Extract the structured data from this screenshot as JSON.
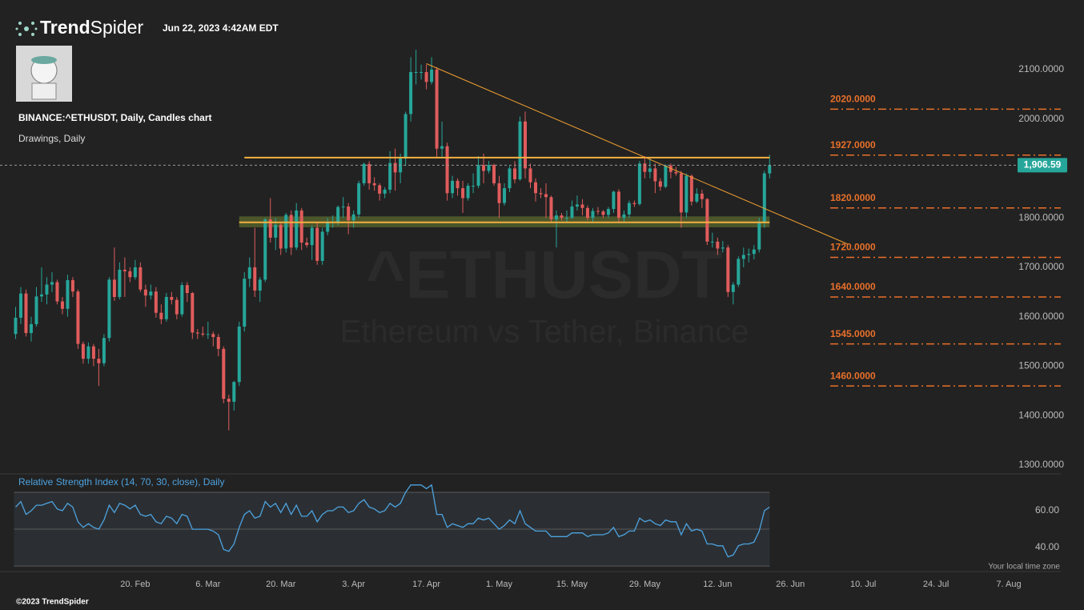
{
  "header": {
    "brand": {
      "bold": "Trend",
      "light": "Spider"
    },
    "timestamp": "Jun 22, 2023 4:42AM EDT"
  },
  "footer": {
    "copyright": "©2023 TrendSpider",
    "timezone_note": "Your local time zone"
  },
  "chart_data": {
    "type": "candlestick",
    "title": "BINANCE:^ETHUSDT, Daily, Candles chart",
    "subtitle": "Drawings, Daily",
    "watermark": "^ETHUSDT",
    "watermark_subtitle": "Ethereum vs Tether, Binance",
    "up_color": "#26a69a",
    "down_color": "#e05c5c",
    "xlim": [
      "2023-01-25",
      "2023-08-17"
    ],
    "xticks": [
      {
        "value": "2023-02-20",
        "label": "20. Feb"
      },
      {
        "value": "2023-03-06",
        "label": "6. Mar"
      },
      {
        "value": "2023-03-20",
        "label": "20. Mar"
      },
      {
        "value": "2023-04-03",
        "label": "3. Apr"
      },
      {
        "value": "2023-04-17",
        "label": "17. Apr"
      },
      {
        "value": "2023-05-01",
        "label": "1. May"
      },
      {
        "value": "2023-05-15",
        "label": "15. May"
      },
      {
        "value": "2023-05-29",
        "label": "29. May"
      },
      {
        "value": "2023-06-12",
        "label": "12. Jun"
      },
      {
        "value": "2023-06-26",
        "label": "26. Jun"
      },
      {
        "value": "2023-07-10",
        "label": "10. Jul"
      },
      {
        "value": "2023-07-24",
        "label": "24. Jul"
      },
      {
        "value": "2023-08-07",
        "label": "7. Aug"
      }
    ],
    "ylim": [
      1282,
      2176
    ],
    "yticks": [
      {
        "value": 2100,
        "label": "2100.0000"
      },
      {
        "value": 2000,
        "label": "2000.0000"
      },
      {
        "value": 1900,
        "label": "1900.0000"
      },
      {
        "value": 1800,
        "label": "1800.0000"
      },
      {
        "value": 1700,
        "label": "1700.0000"
      },
      {
        "value": 1600,
        "label": "1600.0000"
      },
      {
        "value": 1500,
        "label": "1500.0000"
      },
      {
        "value": 1400,
        "label": "1400.0000"
      },
      {
        "value": 1300,
        "label": "1300.0000"
      }
    ],
    "x": [
      "2023-01-28",
      "2023-01-29",
      "2023-01-30",
      "2023-01-31",
      "2023-02-01",
      "2023-02-02",
      "2023-02-03",
      "2023-02-04",
      "2023-02-05",
      "2023-02-06",
      "2023-02-07",
      "2023-02-08",
      "2023-02-09",
      "2023-02-10",
      "2023-02-11",
      "2023-02-12",
      "2023-02-13",
      "2023-02-14",
      "2023-02-15",
      "2023-02-16",
      "2023-02-17",
      "2023-02-18",
      "2023-02-19",
      "2023-02-20",
      "2023-02-21",
      "2023-02-22",
      "2023-02-23",
      "2023-02-24",
      "2023-02-25",
      "2023-02-26",
      "2023-02-27",
      "2023-02-28",
      "2023-03-01",
      "2023-03-02",
      "2023-03-03",
      "2023-03-04",
      "2023-03-05",
      "2023-03-06",
      "2023-03-07",
      "2023-03-08",
      "2023-03-09",
      "2023-03-10",
      "2023-03-11",
      "2023-03-12",
      "2023-03-13",
      "2023-03-14",
      "2023-03-15",
      "2023-03-16",
      "2023-03-17",
      "2023-03-18",
      "2023-03-19",
      "2023-03-20",
      "2023-03-21",
      "2023-03-22",
      "2023-03-23",
      "2023-03-24",
      "2023-03-25",
      "2023-03-26",
      "2023-03-27",
      "2023-03-28",
      "2023-03-29",
      "2023-03-30",
      "2023-03-31",
      "2023-04-01",
      "2023-04-02",
      "2023-04-03",
      "2023-04-04",
      "2023-04-05",
      "2023-04-06",
      "2023-04-07",
      "2023-04-08",
      "2023-04-09",
      "2023-04-10",
      "2023-04-11",
      "2023-04-12",
      "2023-04-13",
      "2023-04-14",
      "2023-04-15",
      "2023-04-16",
      "2023-04-17",
      "2023-04-18",
      "2023-04-19",
      "2023-04-20",
      "2023-04-21",
      "2023-04-22",
      "2023-04-23",
      "2023-04-24",
      "2023-04-25",
      "2023-04-26",
      "2023-04-27",
      "2023-04-28",
      "2023-04-29",
      "2023-04-30",
      "2023-05-01",
      "2023-05-02",
      "2023-05-03",
      "2023-05-04",
      "2023-05-05",
      "2023-05-06",
      "2023-05-07",
      "2023-05-08",
      "2023-05-09",
      "2023-05-10",
      "2023-05-11",
      "2023-05-12",
      "2023-05-13",
      "2023-05-14",
      "2023-05-15",
      "2023-05-16",
      "2023-05-17",
      "2023-05-18",
      "2023-05-19",
      "2023-05-20",
      "2023-05-21",
      "2023-05-22",
      "2023-05-23",
      "2023-05-24",
      "2023-05-25",
      "2023-05-26",
      "2023-05-27",
      "2023-05-28",
      "2023-05-29",
      "2023-05-30",
      "2023-05-31",
      "2023-06-01",
      "2023-06-02",
      "2023-06-03",
      "2023-06-04",
      "2023-06-05",
      "2023-06-06",
      "2023-06-07",
      "2023-06-08",
      "2023-06-09",
      "2023-06-10",
      "2023-06-11",
      "2023-06-12",
      "2023-06-13",
      "2023-06-14",
      "2023-06-15",
      "2023-06-16",
      "2023-06-17",
      "2023-06-18",
      "2023-06-19",
      "2023-06-20",
      "2023-06-21",
      "2023-06-22"
    ],
    "open": [
      1565,
      1598,
      1647,
      1567,
      1585,
      1641,
      1645,
      1665,
      1670,
      1631,
      1616,
      1674,
      1651,
      1545,
      1515,
      1540,
      1515,
      1506,
      1557,
      1675,
      1640,
      1695,
      1692,
      1680,
      1700,
      1655,
      1643,
      1651,
      1608,
      1595,
      1640,
      1634,
      1605,
      1664,
      1648,
      1568,
      1566,
      1564,
      1565,
      1559,
      1535,
      1434,
      1428,
      1468,
      1580,
      1677,
      1700,
      1653,
      1675,
      1797,
      1760,
      1786,
      1738,
      1806,
      1740,
      1815,
      1750,
      1745,
      1780,
      1713,
      1772,
      1792,
      1792,
      1822,
      1823,
      1795,
      1807,
      1870,
      1909,
      1870,
      1866,
      1849,
      1857,
      1911,
      1892,
      1920,
      2010,
      2095,
      2095,
      2095,
      2075,
      2100,
      1940,
      1945,
      1850,
      1875,
      1860,
      1840,
      1865,
      1865,
      1907,
      1895,
      1907,
      1870,
      1830,
      1860,
      1900,
      1878,
      1995,
      1900,
      1872,
      1850,
      1848,
      1842,
      1797,
      1805,
      1800,
      1800,
      1823,
      1827,
      1820,
      1800,
      1814,
      1813,
      1806,
      1818,
      1853,
      1800,
      1807,
      1830,
      1828,
      1910,
      1893,
      1900,
      1874,
      1863,
      1906,
      1893,
      1890,
      1811,
      1885,
      1833,
      1849,
      1838,
      1752,
      1752,
      1738,
      1740,
      1650,
      1665,
      1717,
      1725,
      1727,
      1736,
      1790,
      1890
    ],
    "high": [
      1620,
      1660,
      1655,
      1600,
      1660,
      1700,
      1680,
      1690,
      1675,
      1640,
      1685,
      1680,
      1655,
      1550,
      1548,
      1545,
      1535,
      1565,
      1680,
      1740,
      1710,
      1720,
      1700,
      1715,
      1710,
      1665,
      1665,
      1660,
      1625,
      1648,
      1650,
      1640,
      1670,
      1670,
      1650,
      1575,
      1580,
      1590,
      1570,
      1565,
      1540,
      1442,
      1470,
      1590,
      1690,
      1720,
      1780,
      1680,
      1800,
      1840,
      1800,
      1790,
      1810,
      1815,
      1830,
      1820,
      1760,
      1785,
      1790,
      1780,
      1800,
      1805,
      1825,
      1842,
      1830,
      1815,
      1875,
      1912,
      1915,
      1882,
      1870,
      1862,
      1935,
      1940,
      1930,
      2015,
      2125,
      2140,
      2110,
      2110,
      2125,
      2105,
      1995,
      1952,
      1885,
      1880,
      1875,
      1870,
      1890,
      1925,
      1930,
      1915,
      1910,
      1885,
      1870,
      1905,
      1915,
      2005,
      2015,
      1910,
      1880,
      1860,
      1870,
      1845,
      1815,
      1810,
      1815,
      1835,
      1845,
      1838,
      1825,
      1820,
      1822,
      1816,
      1822,
      1855,
      1858,
      1815,
      1835,
      1835,
      1915,
      1925,
      1920,
      1910,
      1880,
      1908,
      1910,
      1903,
      1895,
      1890,
      1888,
      1860,
      1857,
      1840,
      1770,
      1760,
      1753,
      1745,
      1670,
      1722,
      1740,
      1738,
      1745,
      1800,
      1895,
      1928
    ],
    "low": [
      1555,
      1585,
      1560,
      1550,
      1580,
      1630,
      1625,
      1650,
      1625,
      1605,
      1600,
      1640,
      1535,
      1505,
      1505,
      1500,
      1460,
      1500,
      1550,
      1632,
      1635,
      1640,
      1670,
      1675,
      1650,
      1620,
      1635,
      1598,
      1585,
      1590,
      1625,
      1595,
      1600,
      1630,
      1555,
      1555,
      1560,
      1555,
      1540,
      1520,
      1425,
      1370,
      1410,
      1460,
      1570,
      1660,
      1640,
      1630,
      1670,
      1750,
      1735,
      1725,
      1730,
      1725,
      1735,
      1735,
      1740,
      1715,
      1705,
      1705,
      1765,
      1780,
      1785,
      1800,
      1767,
      1780,
      1800,
      1865,
      1857,
      1855,
      1835,
      1840,
      1850,
      1855,
      1870,
      1905,
      1995,
      2070,
      2080,
      2060,
      2070,
      1920,
      1920,
      1835,
      1840,
      1845,
      1810,
      1835,
      1850,
      1860,
      1870,
      1890,
      1865,
      1800,
      1825,
      1852,
      1870,
      1875,
      1880,
      1860,
      1833,
      1840,
      1800,
      1790,
      1740,
      1795,
      1790,
      1798,
      1815,
      1805,
      1795,
      1790,
      1806,
      1800,
      1800,
      1810,
      1790,
      1790,
      1800,
      1822,
      1825,
      1880,
      1880,
      1850,
      1855,
      1860,
      1880,
      1885,
      1780,
      1800,
      1825,
      1830,
      1820,
      1745,
      1740,
      1725,
      1730,
      1640,
      1625,
      1660,
      1700,
      1710,
      1716,
      1730,
      1780,
      1880
    ],
    "close": [
      1598,
      1647,
      1567,
      1585,
      1641,
      1645,
      1665,
      1670,
      1631,
      1616,
      1674,
      1651,
      1545,
      1515,
      1540,
      1515,
      1506,
      1557,
      1675,
      1640,
      1695,
      1692,
      1680,
      1700,
      1655,
      1643,
      1651,
      1608,
      1595,
      1640,
      1634,
      1605,
      1664,
      1648,
      1568,
      1566,
      1564,
      1565,
      1559,
      1535,
      1434,
      1428,
      1468,
      1580,
      1677,
      1700,
      1653,
      1675,
      1797,
      1760,
      1786,
      1738,
      1806,
      1740,
      1815,
      1750,
      1745,
      1780,
      1713,
      1772,
      1792,
      1792,
      1822,
      1823,
      1795,
      1807,
      1870,
      1909,
      1870,
      1866,
      1849,
      1857,
      1911,
      1892,
      1920,
      2010,
      2095,
      2095,
      2095,
      2075,
      2100,
      1940,
      1945,
      1850,
      1875,
      1860,
      1840,
      1865,
      1865,
      1907,
      1895,
      1907,
      1870,
      1830,
      1860,
      1900,
      1878,
      1995,
      1900,
      1872,
      1850,
      1848,
      1842,
      1797,
      1805,
      1800,
      1800,
      1823,
      1827,
      1820,
      1800,
      1814,
      1813,
      1806,
      1818,
      1853,
      1800,
      1807,
      1830,
      1828,
      1910,
      1893,
      1900,
      1874,
      1863,
      1906,
      1893,
      1890,
      1811,
      1885,
      1833,
      1849,
      1838,
      1752,
      1752,
      1738,
      1740,
      1650,
      1665,
      1717,
      1725,
      1727,
      1736,
      1790,
      1890,
      1906.59
    ],
    "last_price": {
      "value": 1906.59,
      "label": "1,906.59"
    },
    "level_color": "#e8702a",
    "levels": [
      {
        "value": 2020,
        "label": "2020.0000"
      },
      {
        "value": 1927,
        "label": "1927.0000"
      },
      {
        "value": 1820,
        "label": "1820.0000"
      },
      {
        "value": 1720,
        "label": "1720.0000"
      },
      {
        "value": 1640,
        "label": "1640.0000"
      },
      {
        "value": 1545,
        "label": "1545.0000"
      },
      {
        "value": 1460,
        "label": "1460.0000"
      }
    ],
    "trendline": {
      "x": [
        "2023-04-17",
        "2023-07-07"
      ],
      "y": [
        2112,
        1747
      ],
      "color": "#f0a030"
    },
    "resistance_line": {
      "x": [
        "2023-03-13",
        "2023-06-22"
      ],
      "value": 1922,
      "color": "#f5b041"
    },
    "support_zone": {
      "x": [
        "2023-03-12",
        "2023-06-22"
      ],
      "range": [
        1781,
        1803
      ],
      "line": 1791,
      "color": "#f5b041"
    },
    "indicator": {
      "type": "line",
      "name": "Relative Strength Index (14, 70, 30, close), Daily",
      "color": "#4da3e0",
      "ylim": [
        27,
        80
      ],
      "yticks": [
        {
          "value": 60,
          "label": "60.00"
        },
        {
          "value": 40,
          "label": "40.00"
        }
      ],
      "bands": [
        70,
        50,
        30
      ],
      "values": [
        62,
        65,
        58,
        60,
        63,
        63,
        64,
        65,
        61,
        60,
        64,
        62,
        54,
        51,
        53,
        51,
        50,
        55,
        63,
        59,
        64,
        63,
        61,
        63,
        58,
        57,
        58,
        54,
        53,
        57,
        56,
        53,
        58,
        57,
        50,
        50,
        50,
        50,
        49,
        47,
        39,
        38,
        42,
        51,
        58,
        60,
        56,
        57,
        65,
        62,
        64,
        59,
        64,
        58,
        63,
        57,
        57,
        60,
        54,
        58,
        60,
        60,
        62,
        62,
        59,
        60,
        64,
        66,
        62,
        61,
        59,
        60,
        64,
        62,
        64,
        70,
        74,
        74,
        74,
        72,
        74,
        58,
        58,
        51,
        53,
        52,
        51,
        53,
        53,
        56,
        55,
        56,
        53,
        50,
        52,
        55,
        53,
        60,
        53,
        51,
        49,
        49,
        49,
        46,
        46,
        46,
        46,
        48,
        48,
        48,
        46,
        47,
        47,
        47,
        48,
        51,
        46,
        47,
        49,
        49,
        56,
        54,
        55,
        53,
        52,
        55,
        54,
        54,
        47,
        53,
        49,
        50,
        49,
        42,
        42,
        41,
        41,
        35,
        36,
        41,
        42,
        42,
        43,
        49,
        60,
        62
      ]
    }
  }
}
